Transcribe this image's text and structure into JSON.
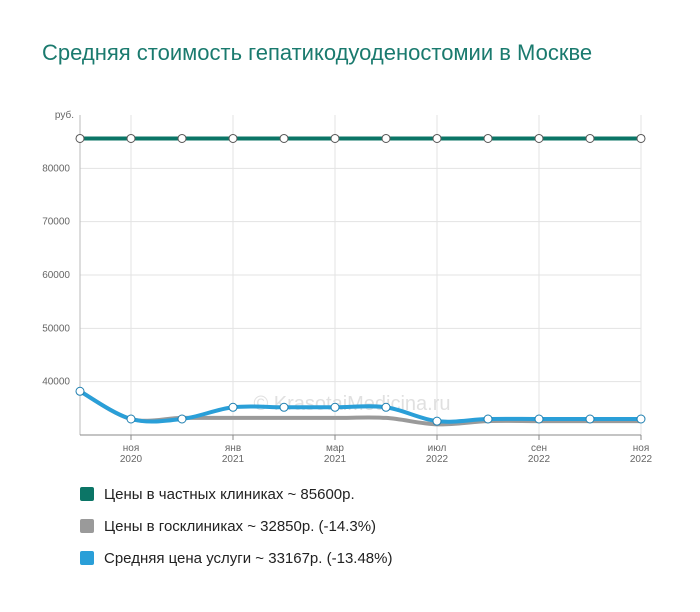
{
  "chart_data": {
    "type": "line",
    "title": "Средняя стоимость гепатикодуоденостомии в Москве",
    "y_unit": "руб.",
    "watermark": "© KrasotaiMedicina.ru",
    "categories": [
      null,
      "ноя 2020",
      null,
      "янв 2021",
      null,
      "мар 2021",
      null,
      "июл 2022",
      null,
      "сен 2022",
      null,
      "ноя 2022"
    ],
    "series": [
      {
        "name": "Цены в частных клиниках ~ 85600р.",
        "color": "#0b7566",
        "values": [
          85600,
          85600,
          85600,
          85600,
          85600,
          85600,
          85600,
          85600,
          85600,
          85600,
          85600,
          85600
        ]
      },
      {
        "name": "Цены в госклиниках ~ 32850р. (-14.3%)",
        "color": "#9a9a9a",
        "values": [
          38200,
          33000,
          33200,
          33200,
          33200,
          33200,
          33200,
          32000,
          32600,
          32600,
          32600,
          32600
        ]
      },
      {
        "name": "Средняя цена услуги ~ 33167р. (-13.48%)",
        "color": "#2a9fd8",
        "values": [
          38200,
          33000,
          33000,
          35200,
          35200,
          35200,
          35200,
          32600,
          33000,
          33000,
          33000,
          33000
        ]
      }
    ],
    "ylim": [
      30000,
      90000
    ],
    "yticks": [
      40000,
      50000,
      60000,
      70000,
      80000
    ],
    "grid": true
  }
}
